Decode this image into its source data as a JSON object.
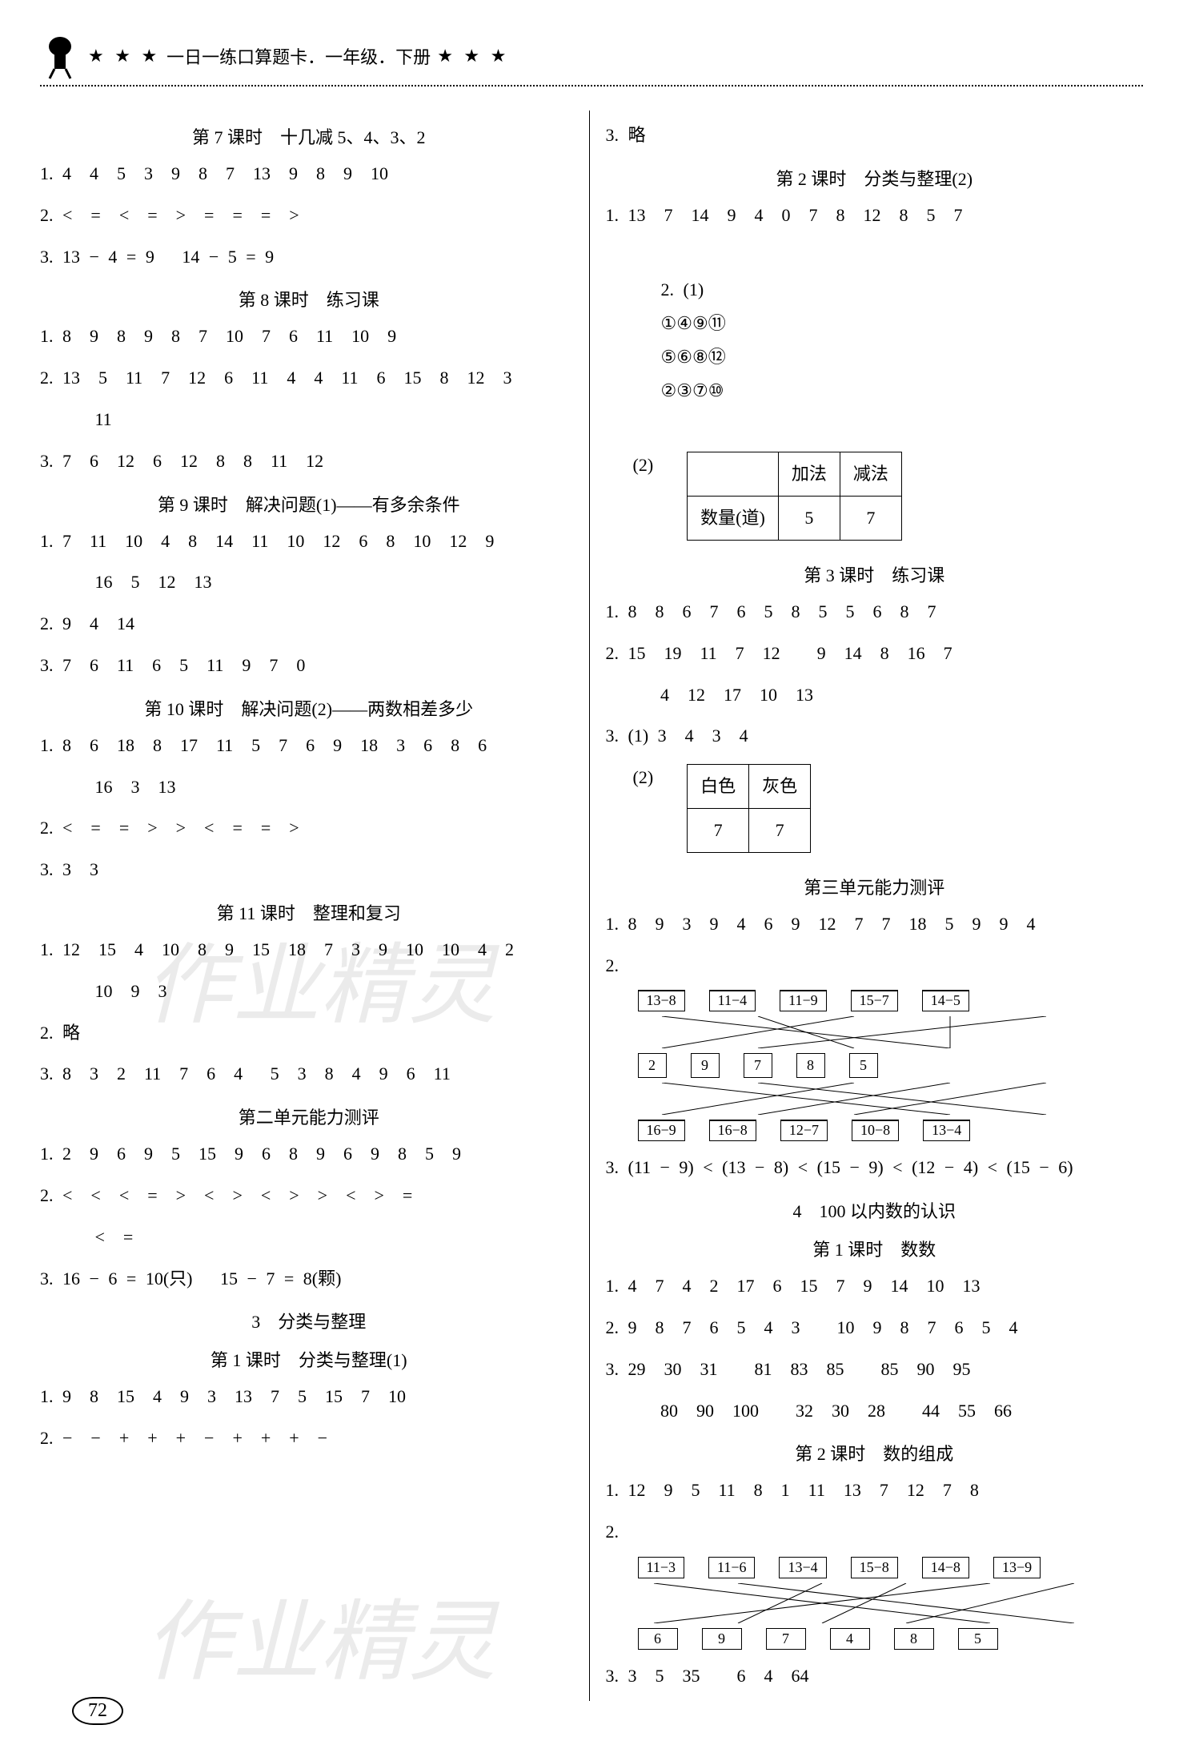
{
  "header": {
    "stars_left": "★ ★ ★",
    "title": "一日一练口算题卡．一年级．下册",
    "stars_right": "★ ★ ★"
  },
  "watermark": "作业精灵",
  "page_number": "72",
  "left": {
    "s7": {
      "head": "第 7 课时　十几减 5、4、3、2",
      "l1": "1. 4  4  5  3  9  8  7  13  9  8  9  10",
      "l2": "2. <  =  <  =  >  =  =  =  >",
      "l3": "3. 13 − 4 = 9   14 − 5 = 9"
    },
    "s8": {
      "head": "第 8 课时　练习课",
      "l1": "1. 8  9  8  9  8  7  10  7  6  11  10  9",
      "l2": "2. 13  5  11  7  12  6  11  4  4  11  6  15  8  12  3",
      "l2b": "   11",
      "l3": "3. 7  6  12  6  12  8  8  11  12"
    },
    "s9": {
      "head": "第 9 课时　解决问题(1)——有多余条件",
      "l1": "1. 7  11  10  4  8  14  11  10  12  6  8  10  12  9",
      "l1b": "   16  5  12  13",
      "l2": "2. 9  4  14",
      "l3": "3. 7  6  11  6  5  11  9  7  0"
    },
    "s10": {
      "head": "第 10 课时　解决问题(2)——两数相差多少",
      "l1": "1. 8  6  18  8  17  11  5  7  6  9  18  3  6  8  6",
      "l1b": "   16  3  13",
      "l2": "2. <  =  =  >  >  <  =  =  >",
      "l3": "3. 3  3"
    },
    "s11": {
      "head": "第 11 课时　整理和复习",
      "l1": "1. 12  15  4  10  8  9  15  18  7  3  9  10  10  4  2",
      "l1b": "   10  9  3",
      "l2": "2. 略",
      "l3": "3. 8  3  2  11  7  6  4   5  3  8  4  9  6  11"
    },
    "unit2": {
      "head": "第二单元能力测评",
      "l1": "1. 2  9  6  9  5  15  9  6  8  9  6  9  8  5  9",
      "l2": "2. <  <  <  =  >  <  >  <  >  >  <  >  =",
      "l2b": "   <  =",
      "l3": "3. 16 − 6 = 10(只)   15 − 7 = 8(颗)"
    },
    "cat3": {
      "head": "3　分类与整理",
      "sub": "第 1 课时　分类与整理(1)",
      "l1": "1. 9  8  15  4  9  3  13  7  5  15  7  10",
      "l2": "2. −  −  +  +  +  −  +  +  +  −"
    }
  },
  "right": {
    "l3top": "3. 略",
    "s2": {
      "head": "第 2 课时　分类与整理(2)",
      "l1": "1. 13  7  14  9  4  0  7  8  12  8  5  7",
      "l2a": "2. (1)",
      "circ1": [
        "①",
        "④",
        "⑨",
        "⑪"
      ],
      "circ2": [
        "⑤",
        "⑥",
        "⑧",
        "⑫"
      ],
      "circ3": [
        "②",
        "③",
        "⑦",
        "⑩"
      ],
      "t2_label": "(2)",
      "t2": {
        "h1": "",
        "h2": "加法",
        "h3": "减法",
        "r1": "数量(道)",
        "r2": "5",
        "r3": "7"
      }
    },
    "s3": {
      "head": "第 3 课时　练习课",
      "l1": "1. 8  8  6  7  6  5  8  5  5  6  8  7",
      "l2": "2. 15  19  11  7  12    9  14  8  16  7",
      "l2b": "   4  12  17  10  13",
      "l3a": "3. (1) 3  4  3  4",
      "t3_label": "(2)",
      "t3": {
        "h1": "白色",
        "h2": "灰色",
        "r1": "7",
        "r2": "7"
      }
    },
    "unit3": {
      "head": "第三单元能力测评",
      "l1": "1. 8  9  3  9  4  6  9  12  7  7  18  5  9  9  4",
      "l2label": "2.",
      "env_top": [
        "13−8",
        "11−4",
        "11−9",
        "15−7",
        "14−5"
      ],
      "cubes": [
        "2",
        "9",
        "7",
        "8",
        "5"
      ],
      "env_bot": [
        "16−9",
        "16−8",
        "12−7",
        "10−8",
        "13−4"
      ],
      "l3": "3. (11 − 9) < (13 − 8) < (15 − 9) < (12 − 4) < (15 − 6)"
    },
    "cat4": {
      "head": "4　100 以内数的认识",
      "sub1": "第 1 课时　数数",
      "l1": "1. 4  7  4  2  17  6  15  7  9  14  10  13",
      "l2": "2. 9  8  7  6  5  4  3    10  9  8  7  6  5  4",
      "l3": "3. 29  30  31    81  83  85    85  90  95",
      "l3b": "   80  90  100    32  30  28    44  55  66",
      "sub2": "第 2 课时　数的组成",
      "l4": "1. 12  9  5  11  8  1  11  13  7  12  7  8",
      "l5label": "2.",
      "boxes_top": [
        "11−3",
        "11−6",
        "13−4",
        "15−8",
        "14−8",
        "13−9"
      ],
      "boxes_bot": [
        "6",
        "9",
        "7",
        "4",
        "8",
        "5"
      ],
      "l6": "3. 3  5  35    6  4  64"
    }
  }
}
